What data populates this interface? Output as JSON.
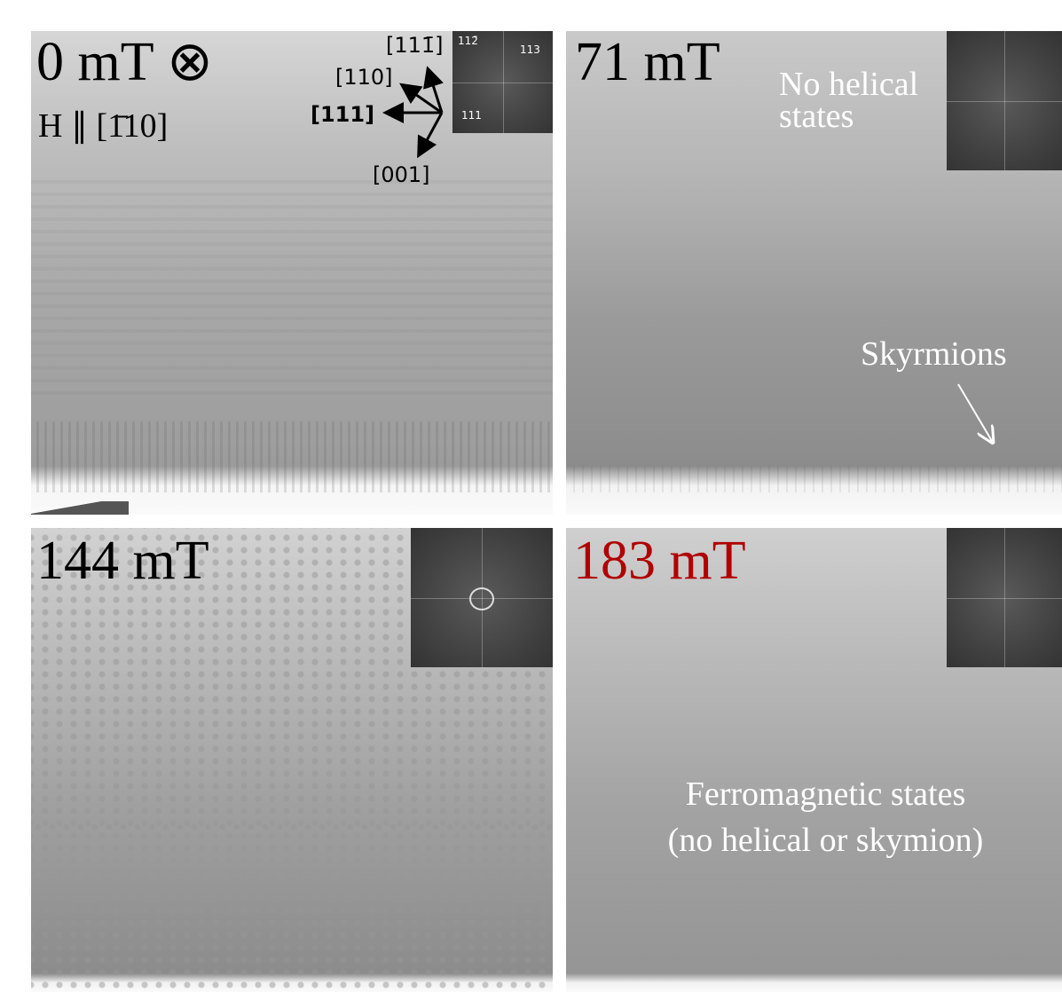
{
  "panels": [
    {
      "field": "0 mT ⊗",
      "direction": "H ∥ [1̄10]",
      "axes": [
        "[111̄]",
        "[110]",
        "[111]",
        "[001]"
      ],
      "fft_labels": [
        "112̄",
        "113",
        "111"
      ]
    },
    {
      "field": "71 mT",
      "note": [
        "No helical",
        "states"
      ],
      "arrow_label": "Skyrmions"
    },
    {
      "field": "144 mT"
    },
    {
      "field": "183 mT",
      "note": [
        "Ferromagnetic states",
        "(no helical or skymion)"
      ]
    }
  ]
}
